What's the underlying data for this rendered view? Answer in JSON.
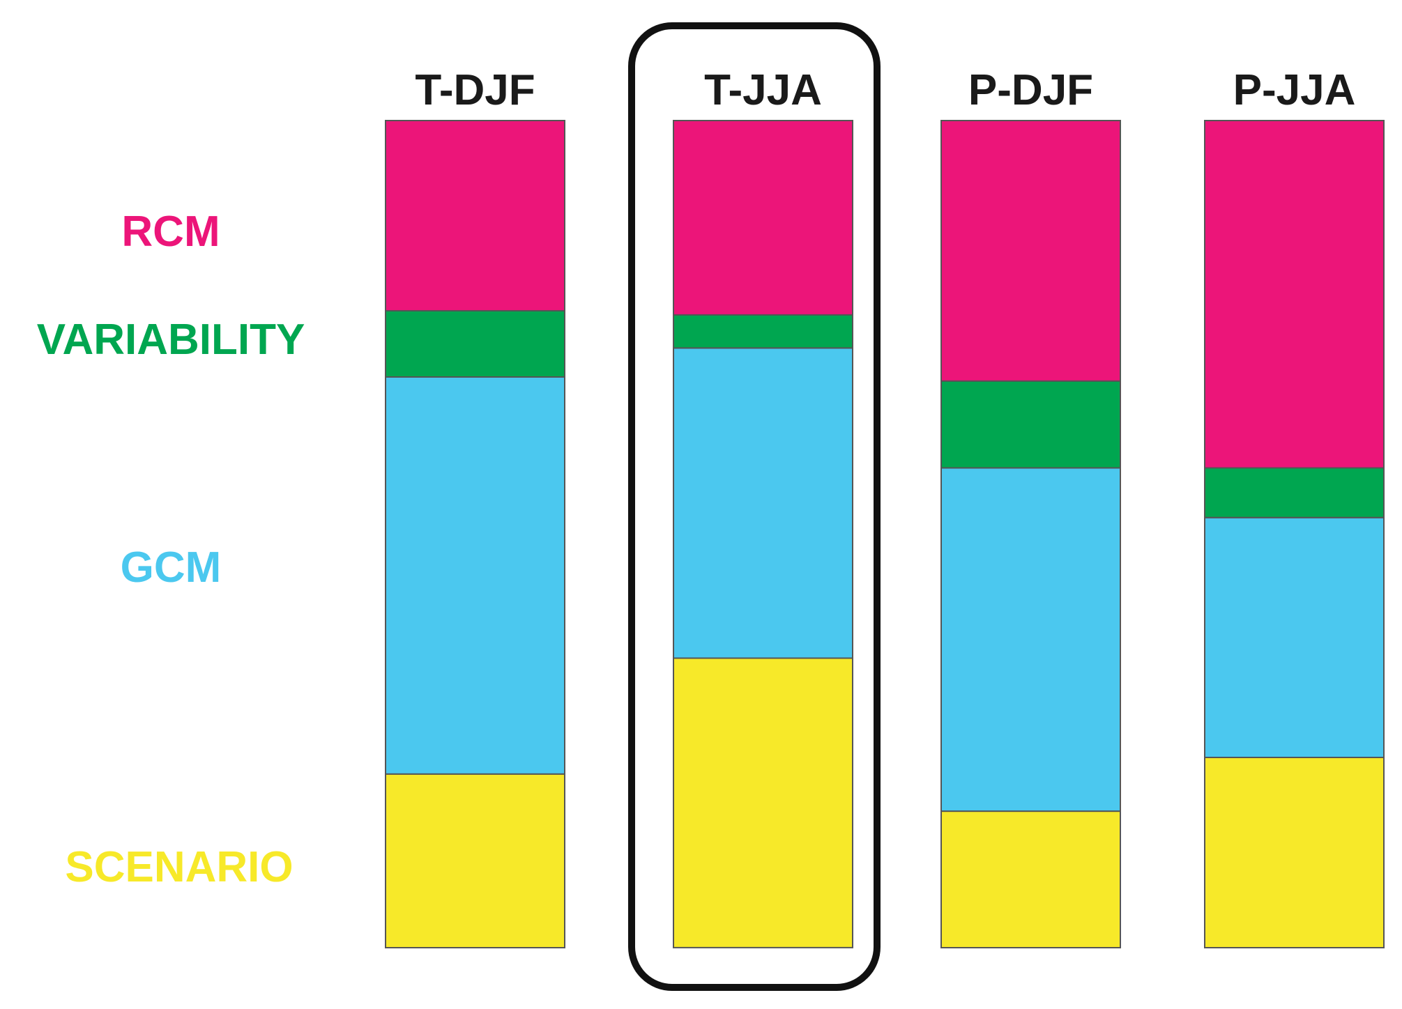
{
  "chart_data": {
    "type": "bar",
    "stacked": true,
    "normalized": true,
    "categories": [
      "T-DJF",
      "T-JJA",
      "P-DJF",
      "P-JJA"
    ],
    "highlighted_category": "T-JJA",
    "series": [
      {
        "name": "SCENARIO",
        "color": "#f7e929",
        "values": [
          0.21,
          0.35,
          0.165,
          0.23
        ]
      },
      {
        "name": "GCM",
        "color": "#4bc8ef",
        "values": [
          0.48,
          0.375,
          0.415,
          0.29
        ]
      },
      {
        "name": "VARIABILITY",
        "color": "#00a650",
        "values": [
          0.08,
          0.04,
          0.105,
          0.06
        ]
      },
      {
        "name": "RCM",
        "color": "#ec1579",
        "values": [
          0.23,
          0.235,
          0.315,
          0.42
        ]
      }
    ],
    "legend_position": "left",
    "grid": false
  }
}
